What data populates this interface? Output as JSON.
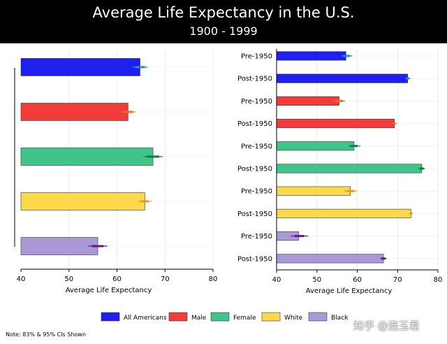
{
  "header": {
    "title": "Average Life Expectancy in the U.S.",
    "subtitle": "1900 - 1999"
  },
  "chart_data": [
    {
      "type": "bar",
      "orientation": "horizontal",
      "categories": [
        "All Americans",
        "Male",
        "Female",
        "White",
        "Black"
      ],
      "values": [
        64.8,
        62.3,
        67.5,
        65.8,
        56.0
      ],
      "ci83": [
        [
          63.8,
          65.8
        ],
        [
          61.3,
          63.3
        ],
        [
          66.2,
          68.8
        ],
        [
          65.0,
          66.6
        ],
        [
          54.8,
          57.2
        ]
      ],
      "ci95": [
        [
          63.2,
          66.4
        ],
        [
          60.8,
          63.8
        ],
        [
          65.5,
          69.5
        ],
        [
          64.4,
          67.2
        ],
        [
          54.0,
          58.0
        ]
      ],
      "colors": [
        "#1f1ff0",
        "#f23b3b",
        "#3fc48a",
        "#fcd94b",
        "#a99ad6"
      ],
      "ci_colors": [
        "#1e88d6",
        "#e8731f",
        "#0e7a3a",
        "#e89b17",
        "#6a0f8c"
      ],
      "xlabel": "Average Life Expectancy",
      "xlim": [
        40,
        80
      ],
      "xticks": [
        40,
        50,
        60,
        70,
        80
      ]
    },
    {
      "type": "bar",
      "orientation": "horizontal",
      "categories": [
        "Pre-1950",
        "Post-1950",
        "Pre-1950",
        "Post-1950",
        "Pre-1950",
        "Post-1950",
        "Pre-1950",
        "Post-1950",
        "Pre-1950",
        "Post-1950"
      ],
      "groups": [
        "All Americans",
        "All Americans",
        "Male",
        "Male",
        "Female",
        "Female",
        "White",
        "White",
        "Black",
        "Black"
      ],
      "values": [
        57.2,
        72.5,
        55.5,
        69.2,
        59.2,
        76.0,
        58.3,
        73.3,
        45.5,
        66.5
      ],
      "ci83": [
        [
          56.5,
          58.2
        ],
        [
          72.1,
          72.9
        ],
        [
          54.8,
          56.5
        ],
        [
          68.9,
          69.5
        ],
        [
          58.4,
          60.1
        ],
        [
          75.5,
          76.5
        ],
        [
          57.5,
          59.3
        ],
        [
          73.0,
          73.6
        ],
        [
          44.5,
          46.8
        ],
        [
          66.0,
          67.0
        ]
      ],
      "ci95": [
        [
          56.0,
          58.8
        ],
        [
          71.8,
          73.2
        ],
        [
          54.2,
          57.0
        ],
        [
          68.7,
          69.8
        ],
        [
          57.8,
          60.8
        ],
        [
          75.2,
          76.8
        ],
        [
          56.8,
          60.0
        ],
        [
          72.8,
          73.8
        ],
        [
          43.5,
          47.8
        ],
        [
          65.7,
          67.3
        ]
      ],
      "colors": [
        "#1f1ff0",
        "#1f1ff0",
        "#f23b3b",
        "#f23b3b",
        "#3fc48a",
        "#3fc48a",
        "#fcd94b",
        "#fcd94b",
        "#a99ad6",
        "#a99ad6"
      ],
      "ci_colors": [
        "#1e88d6",
        "#1e88d6",
        "#e8731f",
        "#e8731f",
        "#0e7a3a",
        "#0e7a3a",
        "#e89b17",
        "#e89b17",
        "#6a0f8c",
        "#6a0f8c"
      ],
      "xlabel": "Average Life Expectancy",
      "xlim": [
        40,
        80
      ],
      "xticks": [
        40,
        50,
        60,
        70,
        80
      ]
    }
  ],
  "legend": {
    "items": [
      {
        "label": "All Americans",
        "color": "#1f1ff0"
      },
      {
        "label": "Male",
        "color": "#f23b3b"
      },
      {
        "label": "Female",
        "color": "#3fc48a"
      },
      {
        "label": "White",
        "color": "#fcd94b"
      },
      {
        "label": "Black",
        "color": "#a99ad6"
      }
    ]
  },
  "note": "Note: 83% & 95% CIs Shown",
  "watermark": "知乎 @连玉君"
}
